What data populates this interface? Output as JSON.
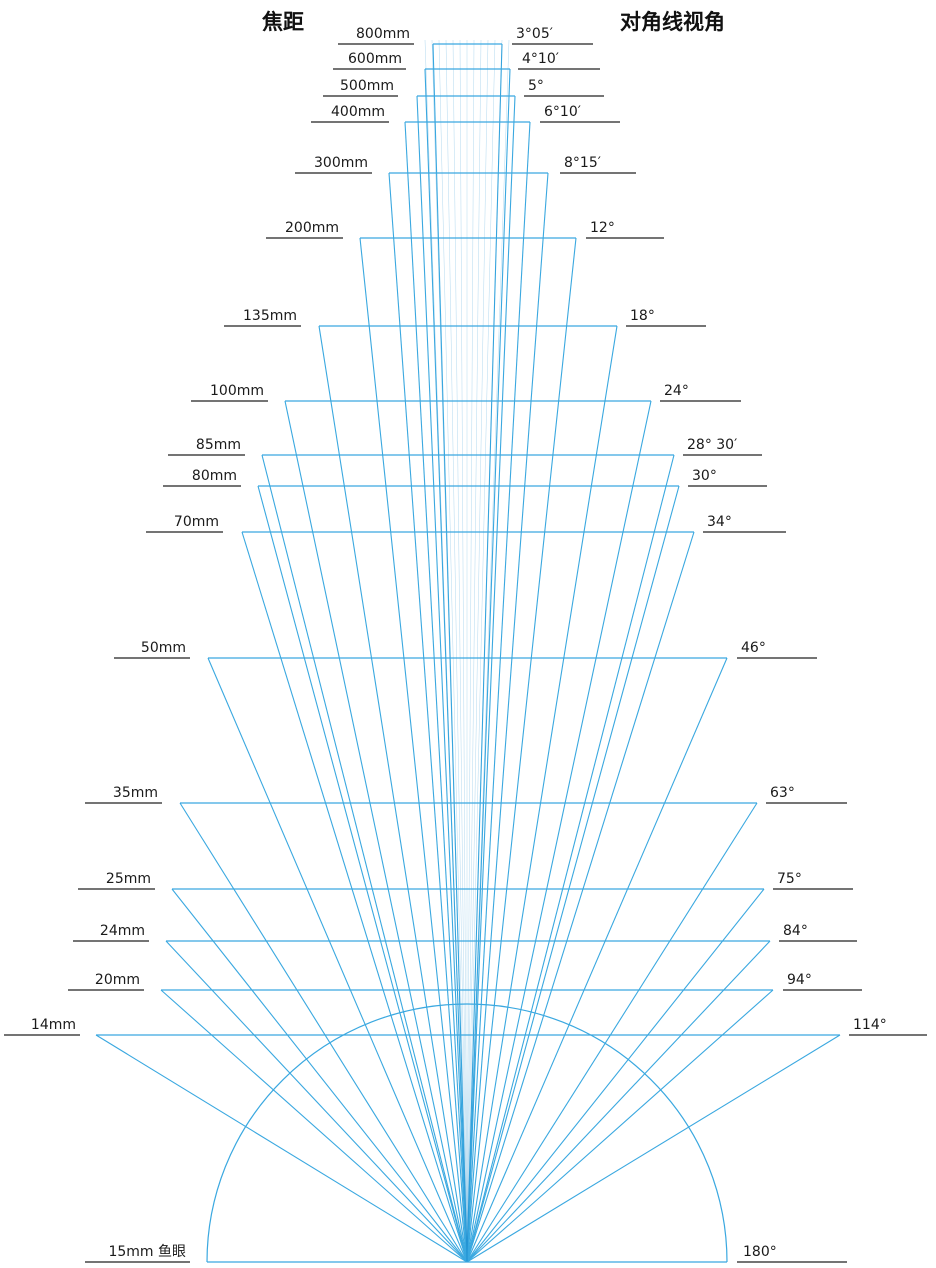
{
  "header": {
    "focal_title": "焦距",
    "angle_title": "对角线视角"
  },
  "lenses": [
    {
      "focal": "800mm",
      "angle": "3°05′"
    },
    {
      "focal": "600mm",
      "angle": "4°10′"
    },
    {
      "focal": "500mm",
      "angle": "5°"
    },
    {
      "focal": "400mm",
      "angle": "6°10′"
    },
    {
      "focal": "300mm",
      "angle": "8°15′"
    },
    {
      "focal": "200mm",
      "angle": "12°"
    },
    {
      "focal": "135mm",
      "angle": "18°"
    },
    {
      "focal": "100mm",
      "angle": "24°"
    },
    {
      "focal": "85mm",
      "angle": "28° 30′"
    },
    {
      "focal": "80mm",
      "angle": "30°"
    },
    {
      "focal": "70mm",
      "angle": "34°"
    },
    {
      "focal": "50mm",
      "angle": "46°"
    },
    {
      "focal": "35mm",
      "angle": "63°"
    },
    {
      "focal": "25mm",
      "angle": "75°"
    },
    {
      "focal": "24mm",
      "angle": "84°"
    },
    {
      "focal": "20mm",
      "angle": "94°"
    },
    {
      "focal": "14mm",
      "angle": "114°"
    }
  ],
  "fisheye": {
    "focal": "15mm 鱼眼",
    "angle": "180°"
  },
  "colors": {
    "ray": "#3aa8e0",
    "ray_dark": "#1f8fd0",
    "underline": "#222222",
    "text": "#1a1a1a"
  }
}
